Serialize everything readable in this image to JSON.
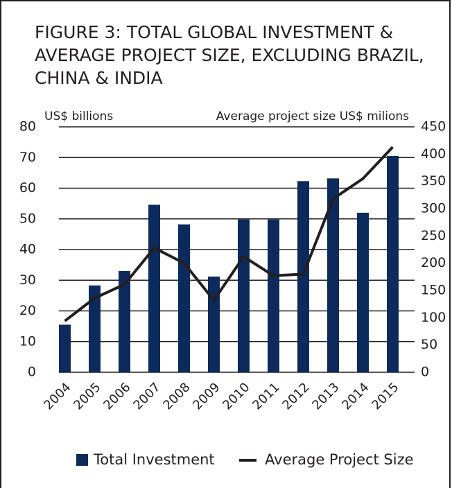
{
  "chart_data": {
    "type": "bar_line",
    "title": [
      "FIGURE 3: TOTAL GLOBAL INVESTMENT &",
      "AVERAGE PROJECT SIZE, EXCLUDING BRAZIL,",
      "CHINA & INDIA"
    ],
    "ylabel": "US$ billions",
    "y2label": "Average project size US$ milions",
    "categories": [
      "2004",
      "2005",
      "2006",
      "2007",
      "2008",
      "2009",
      "2010",
      "2011",
      "2012",
      "2013",
      "2014",
      "2015"
    ],
    "series": [
      {
        "name": "Total Investment",
        "color": "#0d2a5c",
        "type": "bar",
        "values": [
          15.5,
          28.3,
          33,
          54.6,
          48.2,
          31.2,
          49.8,
          49.8,
          62.3,
          63.2,
          52,
          70.5
        ]
      },
      {
        "name": "Average Project Size",
        "color": "#231f20",
        "type": "line",
        "axis": "y2",
        "values": [
          94,
          136,
          161,
          228,
          200,
          132,
          212,
          177,
          180,
          318,
          355,
          413
        ]
      }
    ],
    "ylim": [
      0,
      80
    ],
    "yticks": [
      0,
      10,
      20,
      30,
      40,
      50,
      60,
      70,
      80
    ],
    "y2lim": [
      0,
      450
    ],
    "y2ticks": [
      0,
      50,
      100,
      150,
      200,
      250,
      300,
      350,
      400,
      450
    ],
    "grid": true,
    "legend": "bottom"
  }
}
